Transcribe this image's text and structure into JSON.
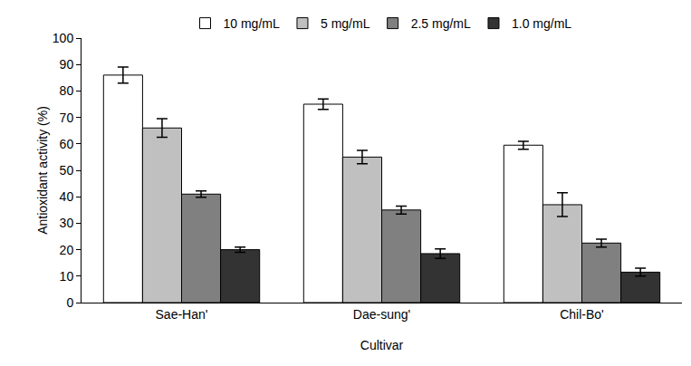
{
  "chart_data": {
    "type": "bar",
    "x_label": "Cultivar",
    "y_label": "Antioxidant activity (%)",
    "categories": [
      "Sae-Han'",
      "Dae-sung'",
      "Chil-Bo'"
    ],
    "series": [
      {
        "name": "10 mg/mL",
        "color": "#ffffff",
        "values": [
          86,
          75,
          59.5
        ],
        "errors": [
          3,
          2,
          1.5
        ]
      },
      {
        "name": "5 mg/mL",
        "color": "#c0c0c0",
        "values": [
          66,
          55,
          37
        ],
        "errors": [
          3.5,
          2.5,
          4.5
        ]
      },
      {
        "name": "2.5 mg/mL",
        "color": "#808080",
        "values": [
          41,
          35,
          22.5
        ],
        "errors": [
          1.2,
          1.5,
          1.5
        ]
      },
      {
        "name": "1.0 mg/mL",
        "color": "#333333",
        "values": [
          20,
          18.5,
          11.5
        ],
        "errors": [
          1,
          1.8,
          1.5
        ]
      }
    ],
    "ylim": [
      0,
      100
    ],
    "yticks": [
      0,
      10,
      20,
      30,
      40,
      50,
      60,
      70,
      80,
      90,
      100
    ],
    "grid": false,
    "legend": "top"
  }
}
